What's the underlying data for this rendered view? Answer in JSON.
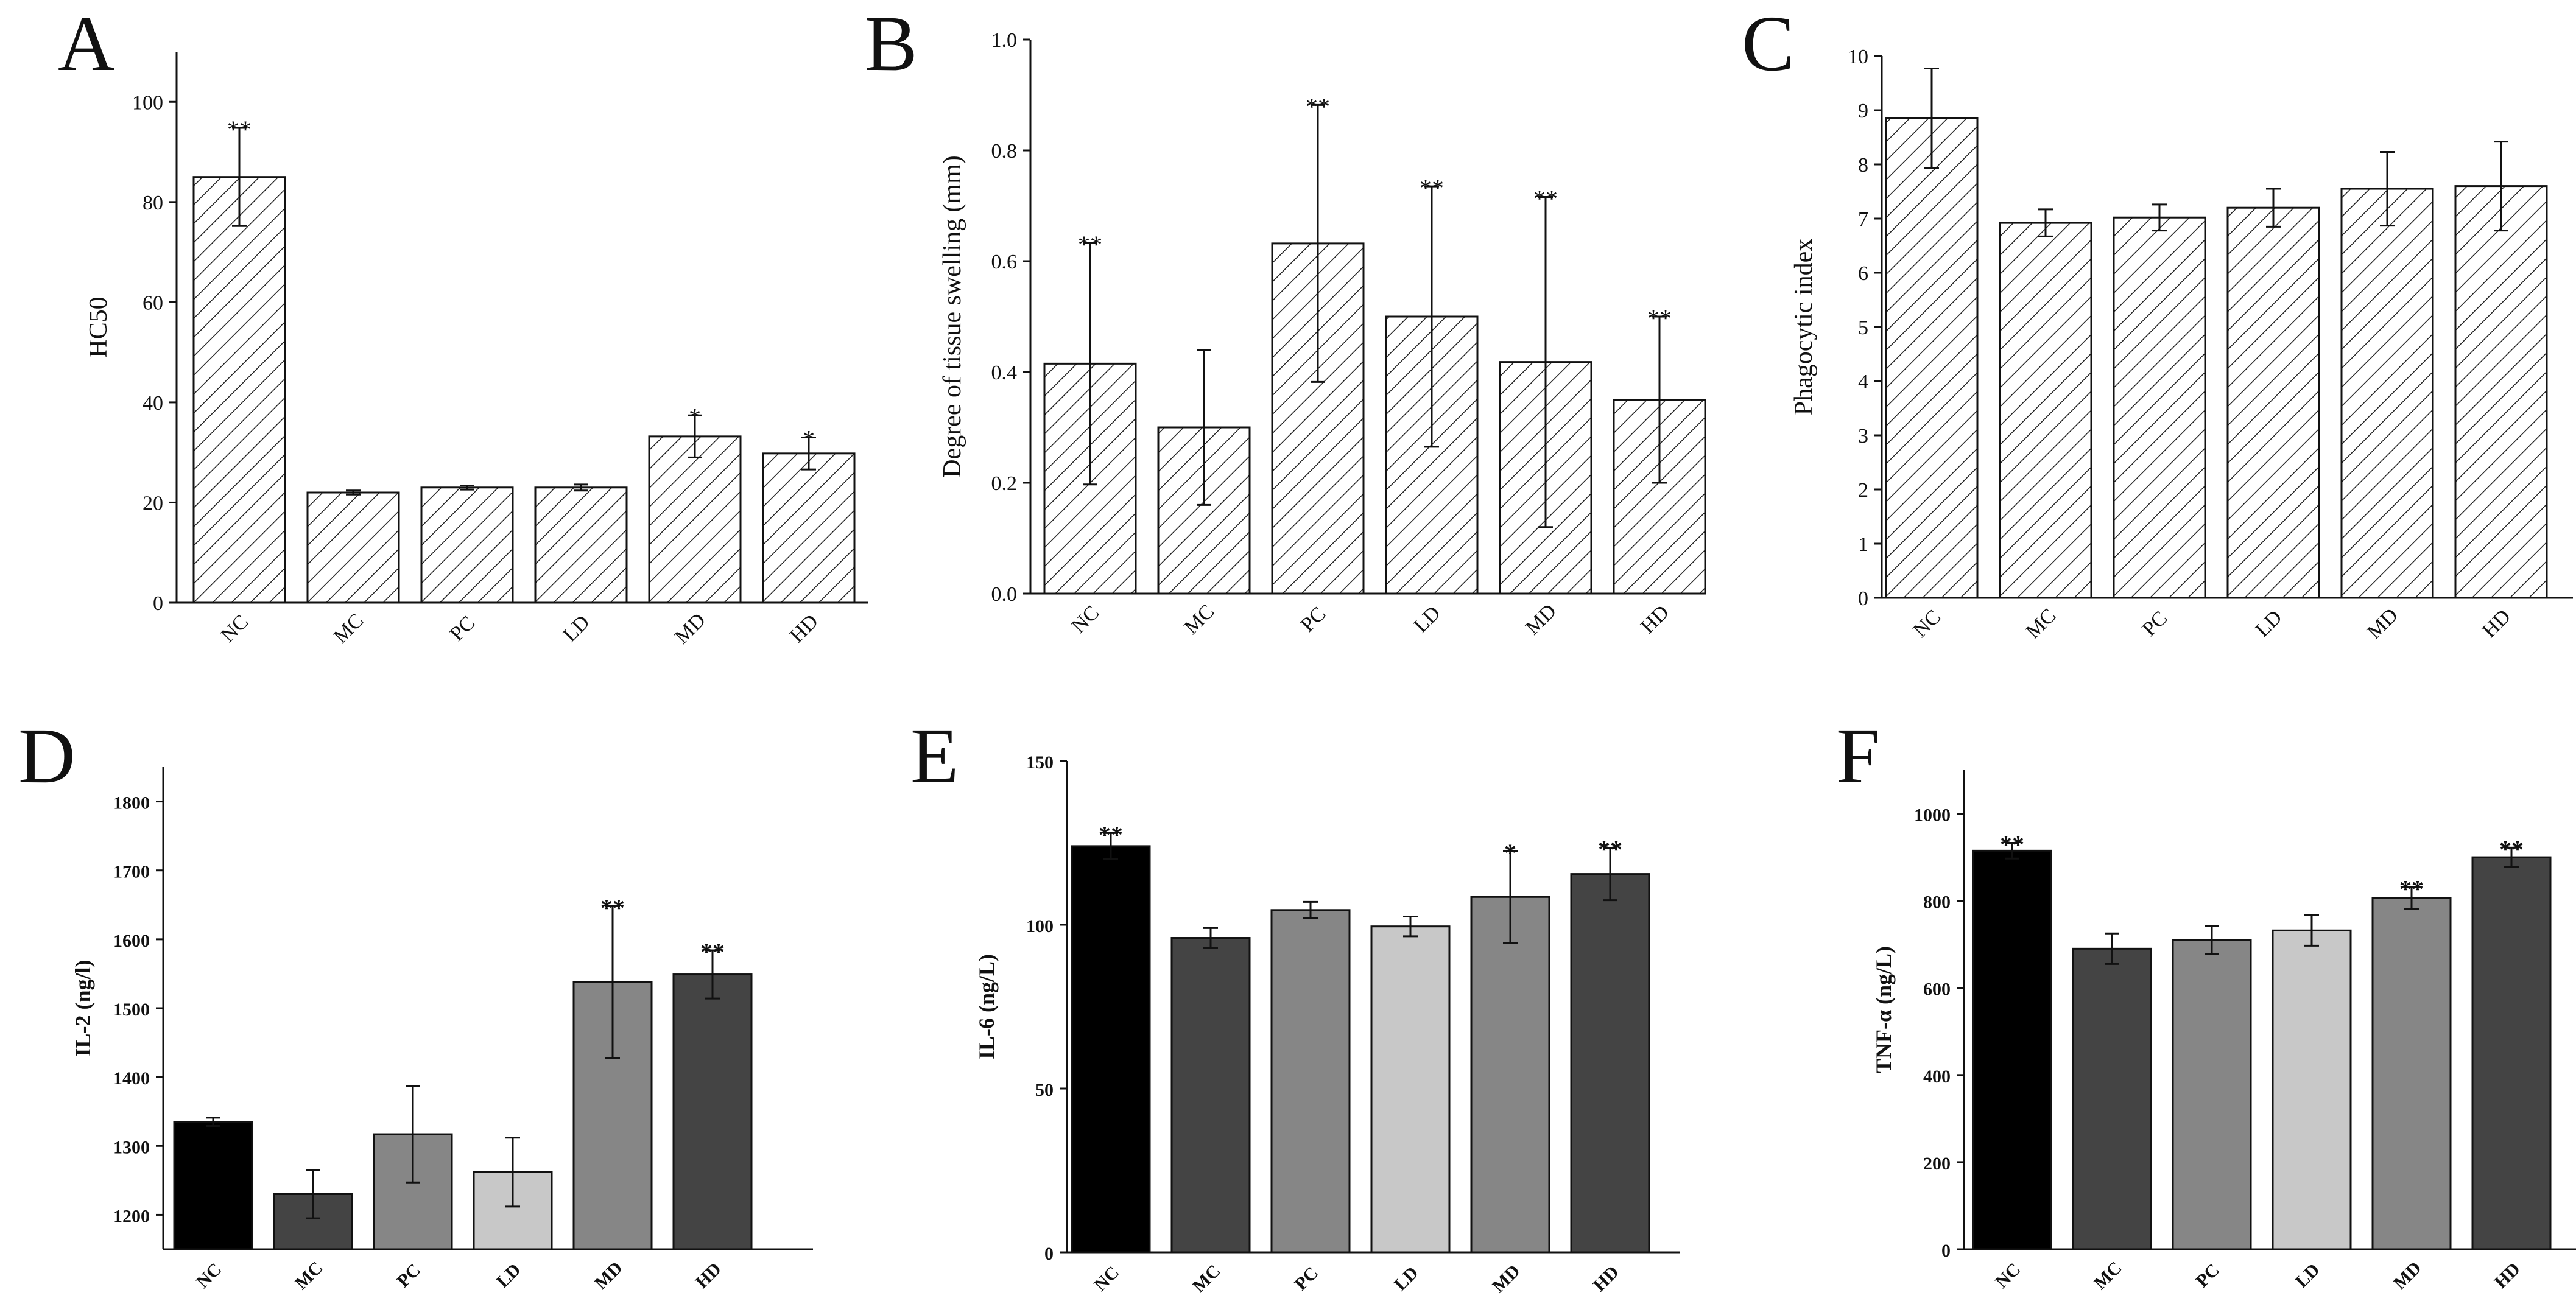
{
  "chart_data": [
    {
      "panel": "A",
      "type": "bar",
      "style": "hatched",
      "categories": [
        "NC",
        "MC",
        "PC",
        "LD",
        "MD",
        "HD"
      ],
      "values": [
        85,
        22,
        23,
        23,
        33.2,
        29.8
      ],
      "errors": [
        9.8,
        0.4,
        0.4,
        0.6,
        4.2,
        3.2
      ],
      "significance": [
        "**",
        "",
        "",
        "",
        "*",
        "*"
      ],
      "ylabel": "HC50",
      "ylim": [
        0,
        110
      ],
      "yticks": [
        0,
        20,
        40,
        60,
        80,
        100
      ],
      "yticks_fmt": 0
    },
    {
      "panel": "B",
      "type": "bar",
      "style": "hatched",
      "categories": [
        "NC",
        "MC",
        "PC",
        "LD",
        "MD",
        "HD"
      ],
      "values": [
        0.415,
        0.3,
        0.632,
        0.5,
        0.418,
        0.35
      ],
      "errors": [
        0.218,
        0.14,
        0.25,
        0.235,
        0.298,
        0.15
      ],
      "significance": [
        "**",
        "",
        "**",
        "**",
        "**",
        "**"
      ],
      "ylabel": "Degree of tissue swelling (mm)",
      "ylim": [
        0,
        1.0
      ],
      "yticks": [
        0,
        0.2,
        0.4,
        0.6,
        0.8,
        1.0
      ],
      "yticks_fmt": 1
    },
    {
      "panel": "C",
      "type": "bar",
      "style": "hatched",
      "categories": [
        "NC",
        "MC",
        "PC",
        "LD",
        "MD",
        "HD"
      ],
      "values": [
        8.85,
        6.92,
        7.02,
        7.2,
        7.55,
        7.6
      ],
      "errors": [
        0.92,
        0.25,
        0.24,
        0.35,
        0.68,
        0.82
      ],
      "significance": [
        "",
        "",
        "",
        "",
        "",
        ""
      ],
      "ylabel": "Phagocytic index",
      "ylim": [
        0,
        10
      ],
      "yticks": [
        0,
        1,
        2,
        3,
        4,
        5,
        6,
        7,
        8,
        9,
        10
      ],
      "yticks_fmt": 0
    },
    {
      "panel": "D",
      "type": "bar",
      "style": "gray",
      "categories": [
        "NC",
        "MC",
        "PC",
        "LD",
        "MD",
        "HD"
      ],
      "values": [
        1335,
        1230,
        1317,
        1262,
        1538,
        1549
      ],
      "errors": [
        6,
        35,
        70,
        50,
        110,
        35
      ],
      "significance": [
        "",
        "",
        "",
        "",
        "**",
        "**"
      ],
      "colors": [
        "#000000",
        "#444444",
        "#868686",
        "#c8c8c8",
        "#868686",
        "#444444"
      ],
      "ylabel": "IL-2 (ng/l)",
      "ylim": [
        1150,
        1850
      ],
      "yticks": [
        1200,
        1300,
        1400,
        1500,
        1600,
        1700,
        1800
      ],
      "yticks_fmt": 0
    },
    {
      "panel": "E",
      "type": "bar",
      "style": "gray",
      "categories": [
        "NC",
        "MC",
        "PC",
        "LD",
        "MD",
        "HD"
      ],
      "values": [
        124,
        96,
        104.5,
        99.5,
        108.5,
        115.5
      ],
      "errors": [
        4,
        3,
        2.5,
        3,
        14,
        8
      ],
      "significance": [
        "**",
        "",
        "",
        "",
        "*",
        "**"
      ],
      "colors": [
        "#000000",
        "#444444",
        "#868686",
        "#c8c8c8",
        "#868686",
        "#444444"
      ],
      "ylabel": "IL-6 (ng/L)",
      "ylim": [
        0,
        150
      ],
      "yticks": [
        0,
        50,
        100,
        150
      ],
      "yticks_fmt": 0
    },
    {
      "panel": "F",
      "type": "bar",
      "style": "gray",
      "categories": [
        "NC",
        "MC",
        "PC",
        "LD",
        "MD",
        "HD"
      ],
      "values": [
        915,
        690,
        710,
        732,
        806,
        900
      ],
      "errors": [
        18,
        35,
        32,
        35,
        25,
        22
      ],
      "significance": [
        "**",
        "",
        "",
        "",
        "**",
        "**"
      ],
      "colors": [
        "#000000",
        "#444444",
        "#868686",
        "#c8c8c8",
        "#868686",
        "#444444"
      ],
      "ylabel": "TNF-α (ng/L)",
      "ylim": [
        0,
        1100
      ],
      "yticks": [
        0,
        200,
        400,
        600,
        800,
        1000
      ],
      "yticks_fmt": 0
    }
  ]
}
